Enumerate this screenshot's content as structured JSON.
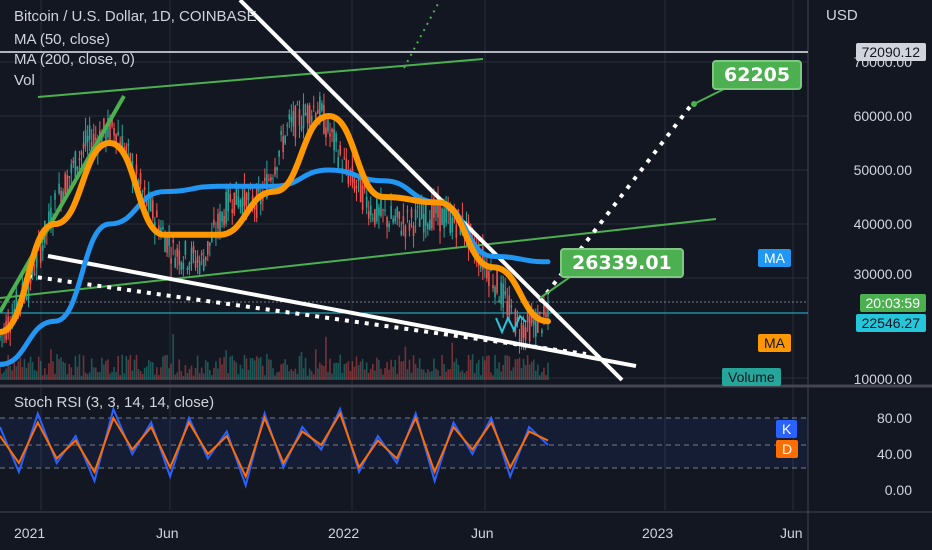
{
  "header": {
    "symbol": "Bitcoin / U.S. Dollar, 1D, COINBASE",
    "ma50": "MA (50, close)",
    "ma200": "MA (200, close, 0)",
    "vol": "Vol",
    "currency": "USD"
  },
  "rsi": {
    "title": "Stoch RSI (3, 3, 14, 14, close)",
    "k_label": "K",
    "d_label": "D",
    "levels": [
      "80.00",
      "40.00",
      "0.00"
    ]
  },
  "price_tags": {
    "top": "72090.12",
    "time": "20:03:59",
    "current": "22546.27",
    "ma_label": "MA",
    "ma2_label": "MA",
    "volume_label": "Volume"
  },
  "callouts": {
    "upper": "62205",
    "lower": "26339.01"
  },
  "colors": {
    "background": "#131722",
    "ma50": "#ff9800",
    "ma200": "#2196f3",
    "trend_green": "#4caf50",
    "rsi_k": "#2962ff",
    "rsi_d": "#ff6d00",
    "current_price": "#26c6da"
  },
  "chart_data": {
    "type": "line",
    "axis_labels": [
      "70000.00",
      "60000.00",
      "50000.00",
      "40000.00",
      "30000.00",
      "10000.00"
    ],
    "date_labels": [
      "2021",
      "Jun",
      "2022",
      "Jun",
      "2023",
      "Jun"
    ],
    "yticks": [
      70000,
      60000,
      50000,
      40000,
      30000,
      10000
    ],
    "series": [
      {
        "x": [
          "2020-12",
          "2021-01",
          "2021-02",
          "2021-03",
          "2021-04",
          "2021-05",
          "2021-06",
          "2021-07",
          "2021-08",
          "2021-09",
          "2021-10",
          "2021-11",
          "2021-12",
          "2022-01",
          "2022-02",
          "2022-03",
          "2022-04",
          "2022-05",
          "2022-06",
          "2022-07"
        ],
        "values": [
          19000,
          29000,
          45000,
          55000,
          58000,
          45000,
          35000,
          33000,
          45000,
          44000,
          58000,
          62000,
          50000,
          42000,
          40000,
          42000,
          40000,
          31000,
          20500,
          22500
        ]
      },
      {
        "x": [
          "2020-12",
          "2021-02",
          "2021-04",
          "2021-06",
          "2021-08",
          "2021-10",
          "2021-12",
          "2022-02",
          "2022-04",
          "2022-06",
          "2022-07"
        ],
        "values": [
          14000,
          22000,
          40000,
          46000,
          47000,
          47000,
          50000,
          48000,
          44000,
          34000,
          33000
        ]
      },
      {
        "x": [
          "2020-12",
          "2021-02",
          "2021-04",
          "2021-06",
          "2021-08",
          "2021-10",
          "2021-12",
          "2022-02",
          "2022-04",
          "2022-06",
          "2022-07"
        ],
        "values": [
          20000,
          40000,
          55000,
          38000,
          38000,
          46000,
          60000,
          45000,
          44000,
          32000,
          22000
        ]
      }
    ],
    "rsi_series": [
      {
        "values": [
          70,
          20,
          85,
          30,
          60,
          10,
          90,
          40,
          75,
          15,
          80,
          35,
          65,
          5,
          85,
          25,
          70,
          45,
          90,
          20,
          60,
          30,
          85,
          10,
          75,
          40,
          80,
          15,
          70,
          50
        ]
      },
      {
        "values": [
          60,
          30,
          75,
          35,
          55,
          20,
          80,
          45,
          70,
          25,
          75,
          40,
          60,
          15,
          80,
          30,
          65,
          50,
          85,
          25,
          55,
          35,
          80,
          20,
          70,
          45,
          75,
          25,
          65,
          55
        ]
      }
    ]
  }
}
